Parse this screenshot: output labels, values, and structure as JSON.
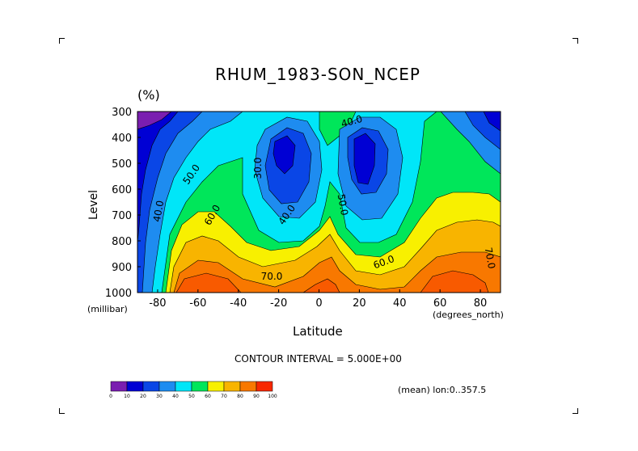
{
  "chart_data": {
    "type": "heatmap",
    "title": "RHUM_1983-SON_NCEP",
    "units": "(%)",
    "xlabel": "Latitude",
    "x_units_note": "(degrees_north)",
    "ylabel": "Level",
    "y_units_note": "(millibar)",
    "x_range": [
      -90,
      90
    ],
    "y_range": [
      300,
      1000
    ],
    "y_axis_inverted": true,
    "x_ticks": [
      -80,
      -60,
      -40,
      -20,
      0,
      20,
      40,
      60,
      80
    ],
    "y_ticks": [
      300,
      400,
      500,
      600,
      700,
      800,
      900,
      1000
    ],
    "contour_interval_text": "CONTOUR INTERVAL = 5.000E+00",
    "note": "(mean) lon:0..357.5",
    "contour_labels": [
      "30.0",
      "40.0",
      "40.0",
      "40.0",
      "50.0",
      "50.0",
      "60.0",
      "60.0",
      "70.0",
      "70.0"
    ],
    "colorbar": {
      "levels": [
        0,
        10,
        20,
        30,
        40,
        50,
        60,
        70,
        80,
        90,
        100
      ],
      "colors": [
        "#7a1eb0",
        "#0000d4",
        "#0a46e6",
        "#1e8cf0",
        "#00e6f8",
        "#00e65a",
        "#f8f000",
        "#f8b400",
        "#f87800",
        "#f82800"
      ]
    },
    "band_colors": {
      "b25": "#0000d4",
      "b30": "#0a46e6",
      "b35": "#1e8cf0",
      "b40": "#00e6f8",
      "b45": "#00e6f8",
      "b50": "#00e65a",
      "b55": "#00e65a",
      "b60": "#f8f000",
      "b65": "#f8f000",
      "b70": "#f8b400",
      "b75": "#f8b400",
      "b80": "#f87800",
      "b85": "#f87800",
      "b90": "#f85a00",
      "low": "#7a1eb0"
    },
    "grid": false
  }
}
